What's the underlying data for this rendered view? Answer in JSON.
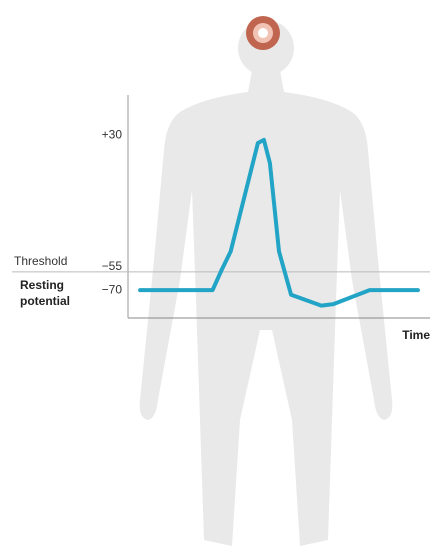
{
  "chart_data": {
    "type": "line",
    "x_label": "Time",
    "annotations": {
      "threshold": "Threshold",
      "resting": [
        "Resting",
        "potential"
      ]
    },
    "x": [
      4,
      28,
      31,
      34,
      43,
      45,
      47,
      50,
      54,
      64,
      68,
      80,
      96
    ],
    "series": [
      {
        "color": "#22a4c6",
        "values": [
          -70,
          -70,
          -57,
          -45,
          25,
          27,
          12,
          -45,
          -73,
          -80,
          -79,
          -70,
          -70
        ]
      }
    ],
    "xlim": [
      0,
      100
    ],
    "ylim": [
      -88,
      56
    ],
    "yticks": [
      {
        "value": 30,
        "label": "+30"
      },
      {
        "value": -55,
        "label": "−55"
      },
      {
        "value": -70,
        "label": "−70"
      }
    ],
    "threshold_line": true
  }
}
